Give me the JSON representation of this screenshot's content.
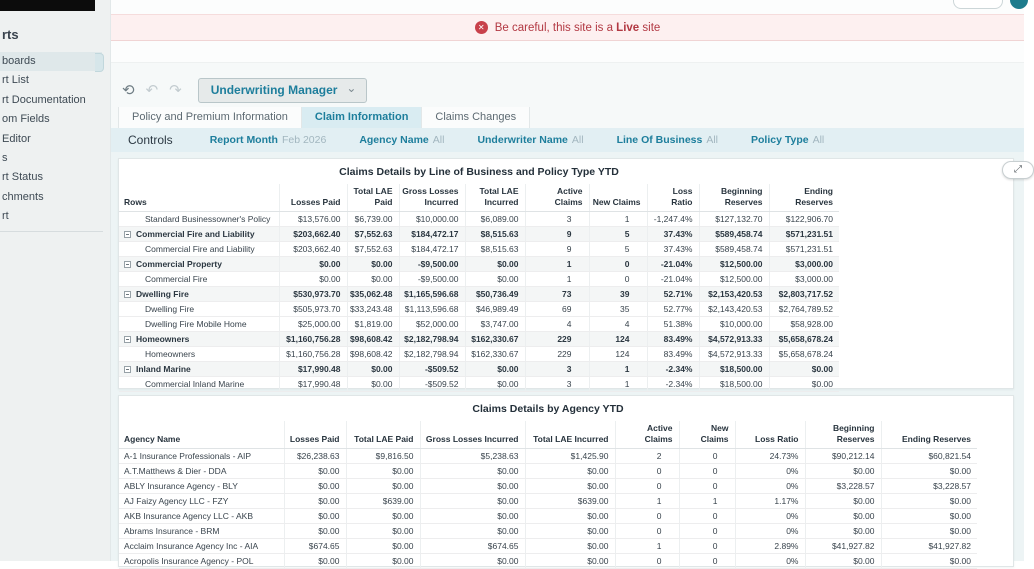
{
  "colors": {
    "accent": "#1d7e9c",
    "banner_red": "#b23842",
    "banner_bg": "#fdf0f0",
    "controls_bg": "#e2eff3",
    "content_bg": "#edf4f5",
    "sidebar_bg": "#eef1f1",
    "active_tab_bg": "#d9ecf2",
    "top_circle_teal": "#1d7b8c"
  },
  "banner": {
    "text_prefix": "Be careful, this site is a ",
    "live_word": "Live",
    "text_suffix": " site",
    "icon_glyph": "✕"
  },
  "sidebar": {
    "header": "rts",
    "items": [
      {
        "label": "boards",
        "selected": true
      },
      {
        "label": "rt List",
        "selected": false
      },
      {
        "label": "rt Documentation",
        "selected": false
      },
      {
        "label": "om Fields",
        "selected": false
      },
      {
        "label": "Editor",
        "selected": false
      },
      {
        "label": "s",
        "selected": false
      },
      {
        "label": "rt Status",
        "selected": false
      },
      {
        "label": "chments",
        "selected": false
      },
      {
        "label": "rt",
        "selected": false
      }
    ]
  },
  "toolbar": {
    "refresh_glyph": "⟲",
    "undo_glyph": "↶",
    "redo_glyph": "↷",
    "dropdown_label": "Underwriting Manager",
    "chevron_glyph": "⌄"
  },
  "tabs": [
    {
      "label": "Policy and Premium Information",
      "active": false
    },
    {
      "label": "Claim Information",
      "active": true
    },
    {
      "label": "Claims Changes",
      "active": false
    }
  ],
  "controls": {
    "title": "Controls",
    "filters": [
      {
        "label": "Report Month",
        "value": "Feb 2026"
      },
      {
        "label": "Agency Name",
        "value": "All"
      },
      {
        "label": "Underwriter Name",
        "value": "All"
      },
      {
        "label": "Line Of Business",
        "value": "All"
      },
      {
        "label": "Policy Type",
        "value": "All"
      }
    ]
  },
  "expand_icon_glyph": "⤢",
  "table1": {
    "title": "Claims Details by Line of Business and Policy Type YTD",
    "row_header": "Rows",
    "columns": [
      "Losses Paid",
      "Total LAE Paid",
      "Gross Losses Incurred",
      "Total LAE Incurred",
      "Active Claims",
      "New Claims",
      "Loss Ratio",
      "Beginning Reserves",
      "Ending Reserves"
    ],
    "rows": [
      {
        "label": "Standard Businessowner's Policy",
        "type": "child",
        "values": [
          "$13,576.00",
          "$6,739.00",
          "$10,000.00",
          "$6,089.00",
          "3",
          "1",
          "-1,247.4%",
          "$127,132.70",
          "$122,906.70"
        ]
      },
      {
        "label": "Commercial Fire and Liability",
        "type": "group",
        "values": [
          "$203,662.40",
          "$7,552.63",
          "$184,472.17",
          "$8,515.63",
          "9",
          "5",
          "37.43%",
          "$589,458.74",
          "$571,231.51"
        ]
      },
      {
        "label": "Commercial Fire and Liability",
        "type": "child",
        "values": [
          "$203,662.40",
          "$7,552.63",
          "$184,472.17",
          "$8,515.63",
          "9",
          "5",
          "37.43%",
          "$589,458.74",
          "$571,231.51"
        ]
      },
      {
        "label": "Commercial Property",
        "type": "group",
        "values": [
          "$0.00",
          "$0.00",
          "-$9,500.00",
          "$0.00",
          "1",
          "0",
          "-21.04%",
          "$12,500.00",
          "$3,000.00"
        ]
      },
      {
        "label": "Commercial Fire",
        "type": "child",
        "values": [
          "$0.00",
          "$0.00",
          "-$9,500.00",
          "$0.00",
          "1",
          "0",
          "-21.04%",
          "$12,500.00",
          "$3,000.00"
        ]
      },
      {
        "label": "Dwelling Fire",
        "type": "group",
        "values": [
          "$530,973.70",
          "$35,062.48",
          "$1,165,596.68",
          "$50,736.49",
          "73",
          "39",
          "52.71%",
          "$2,153,420.53",
          "$2,803,717.52"
        ]
      },
      {
        "label": "Dwelling Fire",
        "type": "child",
        "values": [
          "$505,973.70",
          "$33,243.48",
          "$1,113,596.68",
          "$46,989.49",
          "69",
          "35",
          "52.77%",
          "$2,143,420.53",
          "$2,764,789.52"
        ]
      },
      {
        "label": "Dwelling Fire Mobile Home",
        "type": "child",
        "values": [
          "$25,000.00",
          "$1,819.00",
          "$52,000.00",
          "$3,747.00",
          "4",
          "4",
          "51.38%",
          "$10,000.00",
          "$58,928.00"
        ]
      },
      {
        "label": "Homeowners",
        "type": "group",
        "values": [
          "$1,160,756.28",
          "$98,608.42",
          "$2,182,798.94",
          "$162,330.67",
          "229",
          "124",
          "83.49%",
          "$4,572,913.33",
          "$5,658,678.24"
        ]
      },
      {
        "label": "Homeowners",
        "type": "child",
        "values": [
          "$1,160,756.28",
          "$98,608.42",
          "$2,182,798.94",
          "$162,330.67",
          "229",
          "124",
          "83.49%",
          "$4,572,913.33",
          "$5,658,678.24"
        ]
      },
      {
        "label": "Inland Marine",
        "type": "group",
        "values": [
          "$17,990.48",
          "$0.00",
          "-$509.52",
          "$0.00",
          "3",
          "1",
          "-2.34%",
          "$18,500.00",
          "$0.00"
        ]
      },
      {
        "label": "Commercial Inland Marine",
        "type": "child",
        "values": [
          "$17,990.48",
          "$0.00",
          "-$509.52",
          "$0.00",
          "3",
          "1",
          "-2.34%",
          "$18,500.00",
          "$0.00"
        ]
      }
    ]
  },
  "table2": {
    "title": "Claims Details by Agency YTD",
    "columns": [
      "Agency Name",
      "Losses Paid",
      "Total LAE Paid",
      "Gross Losses Incurred",
      "Total LAE Incurred",
      "Active Claims",
      "New Claims",
      "Loss Ratio",
      "Beginning Reserves",
      "Ending Reserves"
    ],
    "rows": [
      {
        "label": "A-1 Insurance Professionals - AIP",
        "values": [
          "$26,238.63",
          "$9,816.50",
          "$5,238.63",
          "$1,425.90",
          "2",
          "0",
          "24.73%",
          "$90,212.14",
          "$60,821.54"
        ]
      },
      {
        "label": "A.T.Matthews & Dier - DDA",
        "values": [
          "$0.00",
          "$0.00",
          "$0.00",
          "$0.00",
          "0",
          "0",
          "0%",
          "$0.00",
          "$0.00"
        ]
      },
      {
        "label": "ABLY Insurance Agency - BLY",
        "values": [
          "$0.00",
          "$0.00",
          "$0.00",
          "$0.00",
          "0",
          "0",
          "0%",
          "$3,228.57",
          "$3,228.57"
        ]
      },
      {
        "label": "AJ Faizy Agency LLC - FZY",
        "values": [
          "$0.00",
          "$639.00",
          "$0.00",
          "$639.00",
          "1",
          "1",
          "1.17%",
          "$0.00",
          "$0.00"
        ]
      },
      {
        "label": "AKB Insurance Agency LLC - AKB",
        "values": [
          "$0.00",
          "$0.00",
          "$0.00",
          "$0.00",
          "0",
          "0",
          "0%",
          "$0.00",
          "$0.00"
        ]
      },
      {
        "label": "Abrams Insurance - BRM",
        "values": [
          "$0.00",
          "$0.00",
          "$0.00",
          "$0.00",
          "0",
          "0",
          "0%",
          "$0.00",
          "$0.00"
        ]
      },
      {
        "label": "Acclaim Insurance Agency Inc - AIA",
        "values": [
          "$674.65",
          "$0.00",
          "$674.65",
          "$0.00",
          "1",
          "0",
          "2.89%",
          "$41,927.82",
          "$41,927.82"
        ]
      },
      {
        "label": "Acropolis Insurance Agency - POL",
        "values": [
          "$0.00",
          "$0.00",
          "$0.00",
          "$0.00",
          "0",
          "0",
          "0%",
          "$0.00",
          "$0.00"
        ]
      }
    ]
  }
}
